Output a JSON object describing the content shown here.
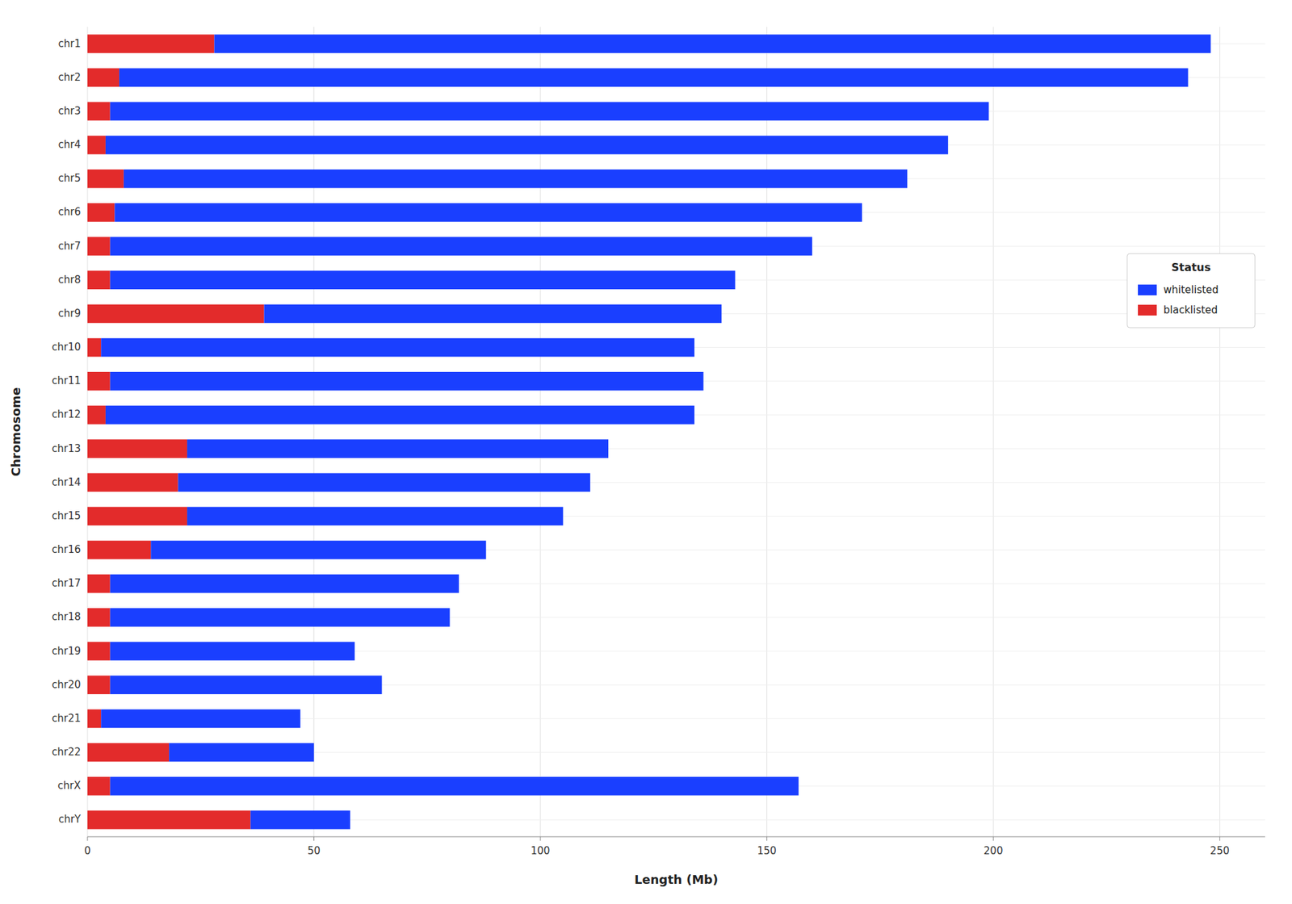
{
  "chart_data": {
    "type": "bar",
    "orientation": "horizontal",
    "stacked": true,
    "categories": [
      "chr1",
      "chr2",
      "chr3",
      "chr4",
      "chr5",
      "chr6",
      "chr7",
      "chr8",
      "chr9",
      "chr10",
      "chr11",
      "chr12",
      "chr13",
      "chr14",
      "chr15",
      "chr16",
      "chr17",
      "chr18",
      "chr19",
      "chr20",
      "chr21",
      "chr22",
      "chrX",
      "chrY"
    ],
    "series": [
      {
        "name": "blacklisted",
        "color": "#e32b2b",
        "values": [
          28,
          7,
          5,
          4,
          8,
          6,
          5,
          5,
          39,
          3,
          5,
          4,
          22,
          20,
          22,
          14,
          5,
          5,
          5,
          5,
          3,
          18,
          5,
          36
        ]
      },
      {
        "name": "whitelisted",
        "color": "#1a3fff",
        "values": [
          220,
          236,
          194,
          186,
          173,
          165,
          155,
          138,
          101,
          131,
          131,
          130,
          93,
          91,
          83,
          74,
          77,
          75,
          54,
          60,
          44,
          32,
          152,
          22
        ]
      }
    ],
    "xlabel": "Length (Mb)",
    "ylabel": "Chromosome",
    "xlim": [
      0,
      260
    ],
    "xticks": [
      0,
      50,
      100,
      150,
      200,
      250
    ],
    "grid": true,
    "legend": "upper right",
    "legend_title": "Status"
  }
}
